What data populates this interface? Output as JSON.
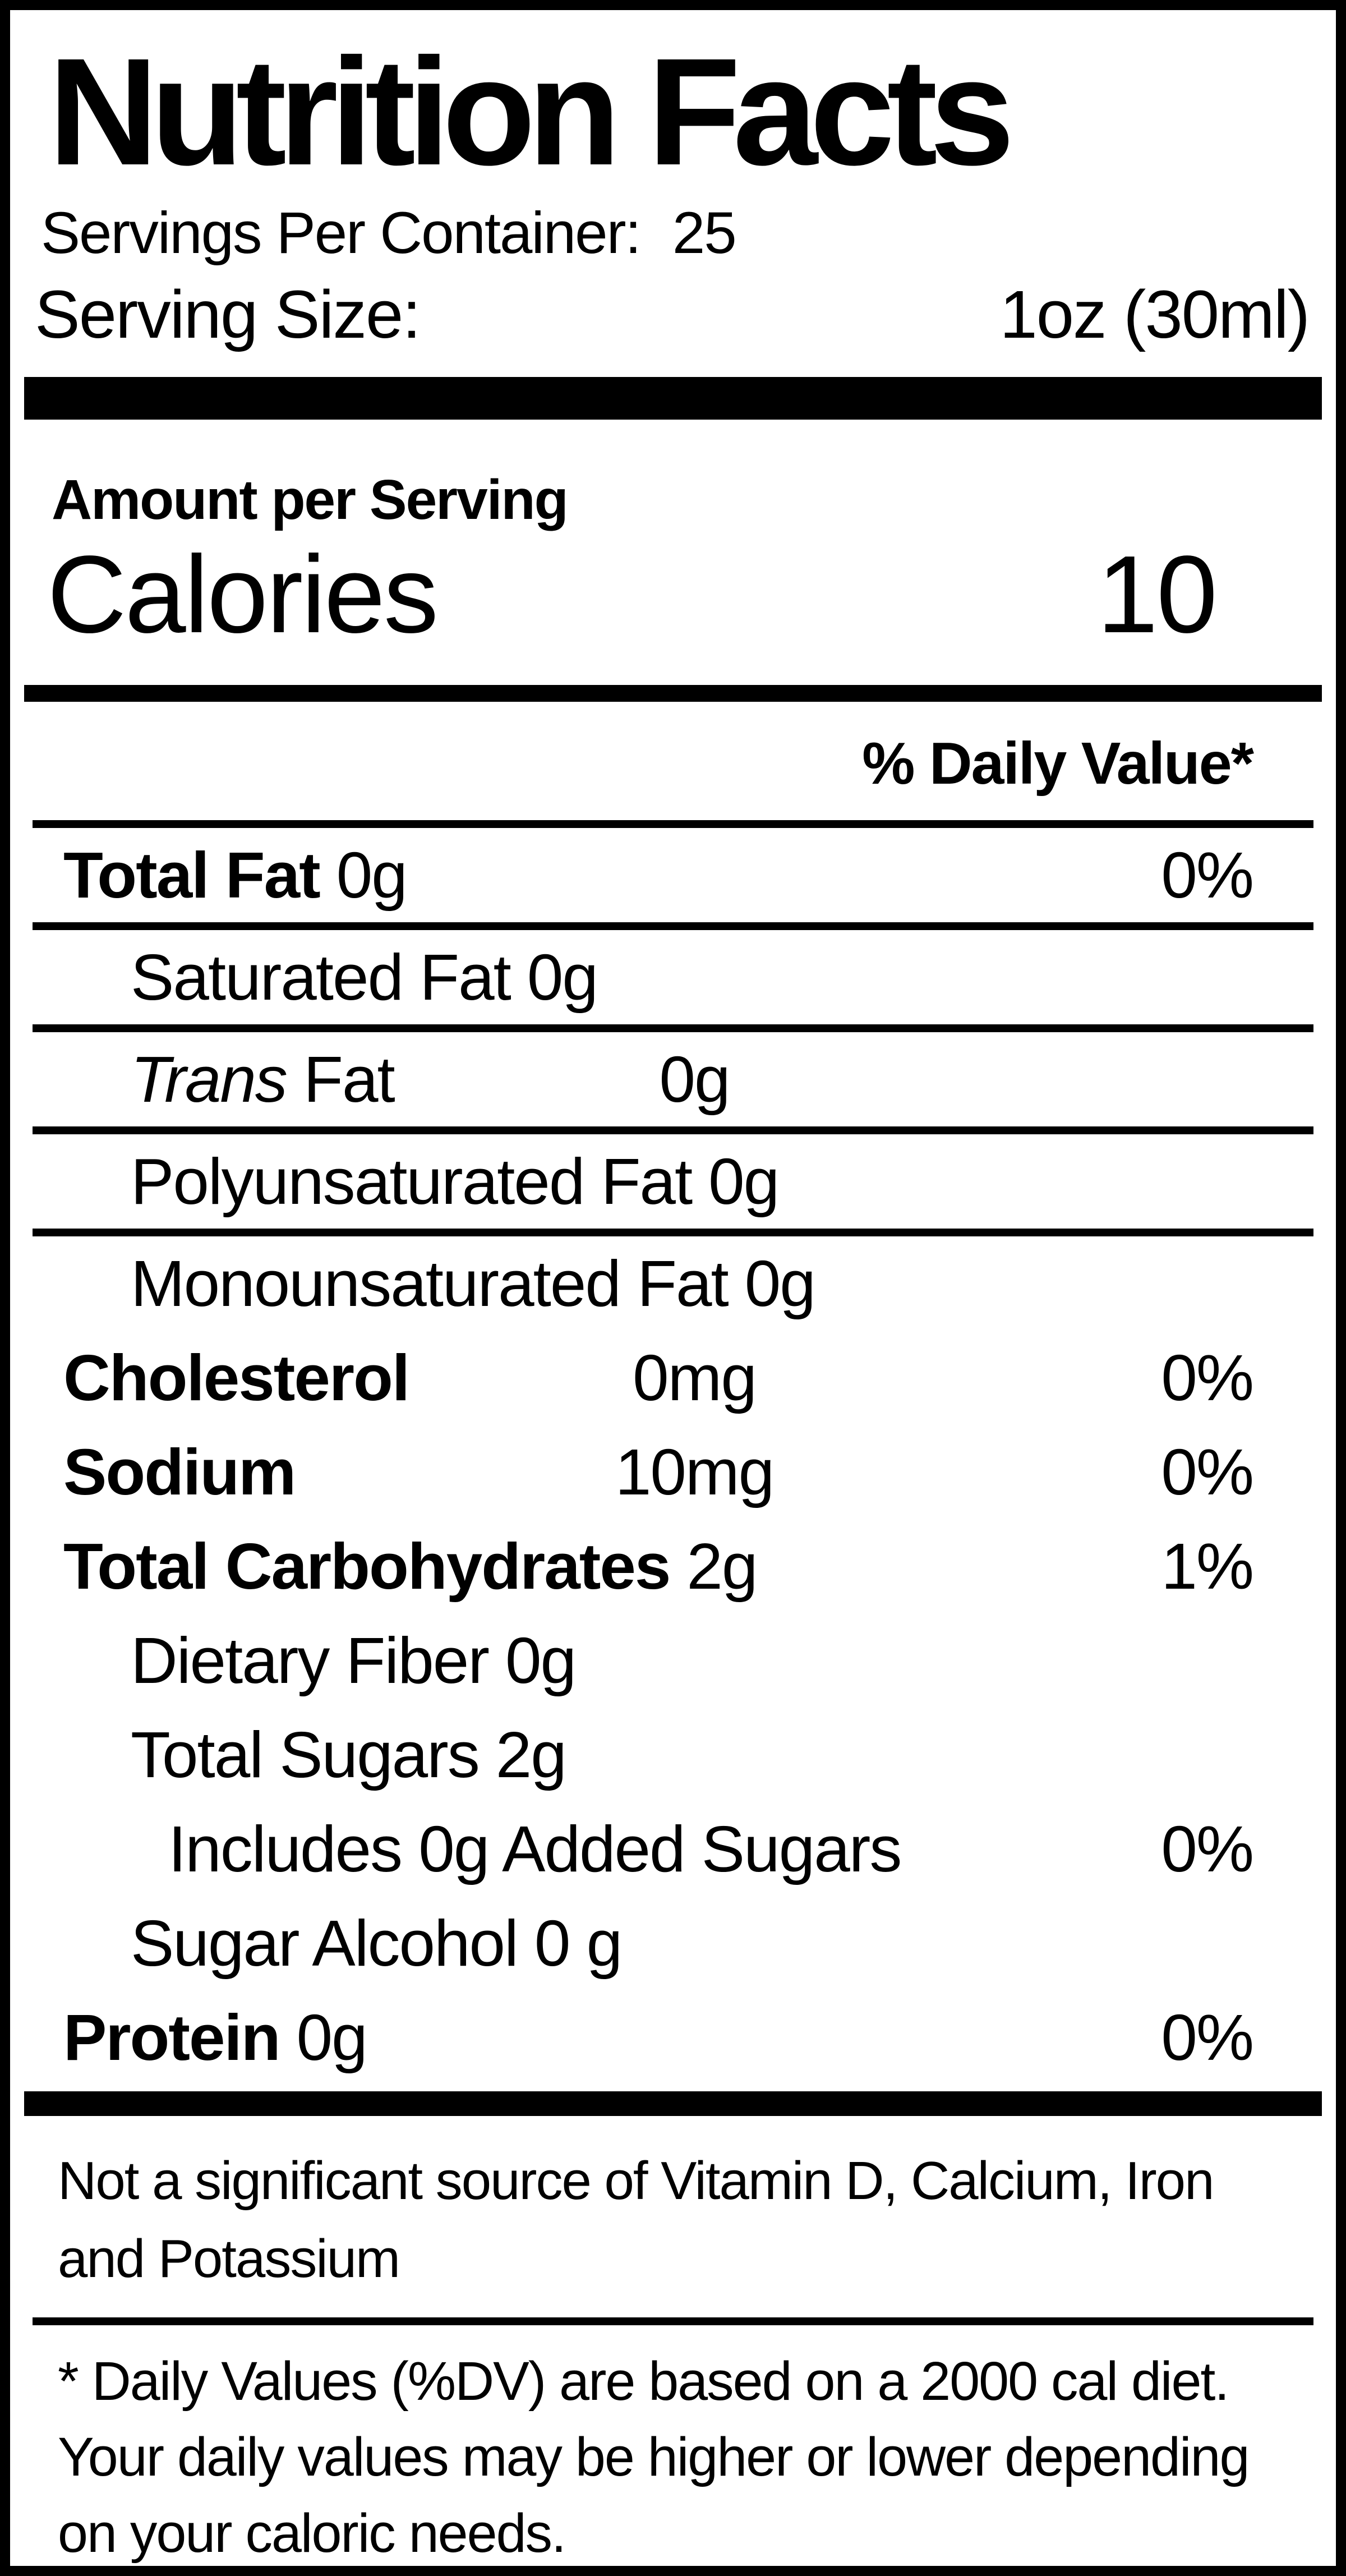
{
  "title": {
    "text": "Nutrition Facts"
  },
  "header": {
    "servings_label": "Servings Per Container:",
    "servings_value": "25",
    "serving_size_label": "Serving Size:",
    "serving_size_value": "1oz (30ml)"
  },
  "calories_section": {
    "amount_label": "Amount per Serving",
    "calories_label": "Calories",
    "calories_value": "10"
  },
  "daily_value_header": "% Daily Value*",
  "nutrients": [
    {
      "label": "Total Fat",
      "value": "0g",
      "pct": "0%"
    },
    {
      "label": "Saturated Fat",
      "value": "0g"
    },
    {
      "label_italic": "Trans",
      "label_rest": " Fat",
      "value": "0g"
    },
    {
      "label": "Polyunsaturated Fat",
      "value": "0g"
    },
    {
      "label": "Monounsaturated Fat",
      "value": "0g"
    },
    {
      "label": "Cholesterol",
      "value": "0mg",
      "pct": "0%"
    },
    {
      "label": "Sodium",
      "value": "10mg",
      "pct": "0%"
    },
    {
      "label": "Total Carbohydrates",
      "value": "2g",
      "pct": "1%"
    },
    {
      "label": "Dietary Fiber",
      "value": "0g"
    },
    {
      "label": "Total Sugars",
      "value": "2g"
    },
    {
      "label": "Includes 0g Added Sugars",
      "pct": "0%"
    },
    {
      "label": "Sugar Alcohol",
      "value": "0 g"
    },
    {
      "label": "Protein",
      "value": "0g",
      "pct": "0%"
    }
  ],
  "footnotes": {
    "not_significant": "Not a significant source of Vitamin D, Calcium, Iron and Potassium",
    "daily_value_note": "* Daily Values (%DV) are based on a 2000 cal diet. Your daily values may be higher or lower depending on your caloric needs."
  },
  "colors": {
    "ink": "#000000",
    "background": "#ffffff"
  }
}
